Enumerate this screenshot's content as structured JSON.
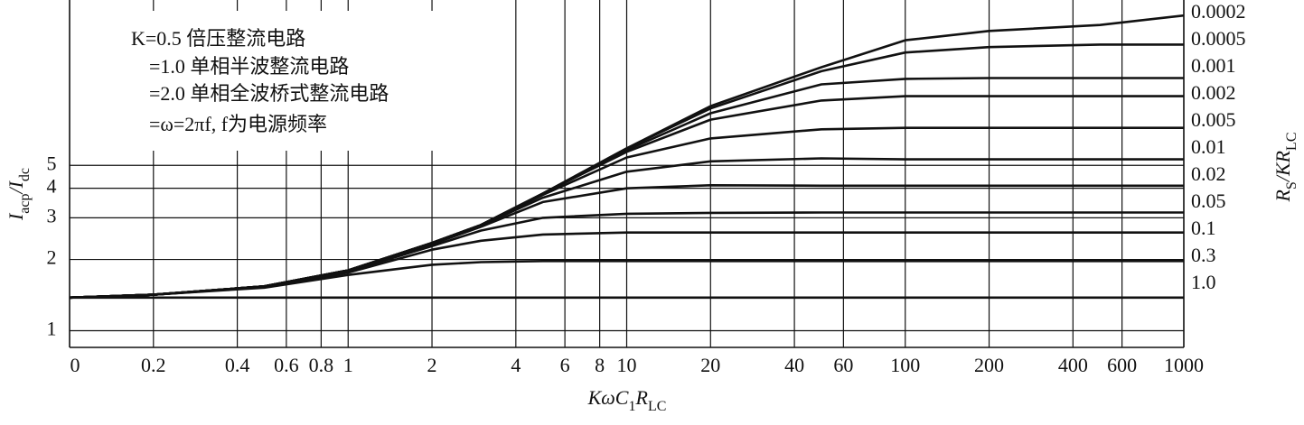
{
  "chart_data": {
    "type": "line",
    "ylabel": [
      "I",
      "acp",
      "/I",
      "dc"
    ],
    "xlabel": [
      "KωC",
      "1",
      "R",
      "LC"
    ],
    "y2label": [
      "R",
      "S",
      "/KR",
      "LC"
    ],
    "annotations": [
      "K=0.5 倍压整流电路",
      "=1.0 单相半波整流电路",
      "=2.0 单相全波桥式整流电路",
      "=ω=2πf, f为电源频率"
    ],
    "xscale": "log",
    "yscale": "log",
    "grid": true,
    "color": "#111111",
    "xlim": [
      0.1,
      1000
    ],
    "ylim": [
      0.85,
      25
    ],
    "xticks": [
      {
        "value": 0.1,
        "label": "0"
      },
      0.2,
      0.4,
      0.6,
      0.8,
      1,
      2,
      4,
      6,
      8,
      10,
      20,
      40,
      60,
      100,
      200,
      400,
      600,
      1000
    ],
    "yticks": [
      1,
      2,
      3,
      4,
      5
    ],
    "x": [
      0.1,
      0.2,
      0.5,
      1,
      2,
      3,
      5,
      10,
      20,
      50,
      100,
      200,
      500,
      1000
    ],
    "series": [
      {
        "name": "0.0002",
        "values": [
          1.38,
          1.42,
          1.54,
          1.8,
          2.35,
          2.8,
          3.8,
          5.9,
          8.9,
          13.0,
          16.9,
          18.5,
          19.6,
          21.5
        ]
      },
      {
        "name": "0.0005",
        "values": [
          1.38,
          1.42,
          1.54,
          1.8,
          2.35,
          2.8,
          3.8,
          5.9,
          8.7,
          12.5,
          15.0,
          15.8,
          16.2,
          16.2
        ]
      },
      {
        "name": "0.001",
        "values": [
          1.38,
          1.42,
          1.54,
          1.8,
          2.35,
          2.8,
          3.8,
          5.8,
          8.3,
          11.0,
          11.6,
          11.7,
          11.7,
          11.7
        ]
      },
      {
        "name": "0.002",
        "values": [
          1.38,
          1.42,
          1.54,
          1.8,
          2.35,
          2.8,
          3.8,
          5.7,
          7.8,
          9.4,
          9.8,
          9.8,
          9.8,
          9.8
        ]
      },
      {
        "name": "0.005",
        "values": [
          1.38,
          1.42,
          1.54,
          1.8,
          2.35,
          2.8,
          3.75,
          5.4,
          6.5,
          7.1,
          7.2,
          7.2,
          7.2,
          7.2
        ]
      },
      {
        "name": "0.01",
        "values": [
          1.38,
          1.42,
          1.54,
          1.8,
          2.34,
          2.78,
          3.65,
          4.7,
          5.2,
          5.35,
          5.3,
          5.3,
          5.3,
          5.3
        ]
      },
      {
        "name": "0.02",
        "values": [
          1.38,
          1.42,
          1.54,
          1.79,
          2.32,
          2.75,
          3.5,
          4.0,
          4.12,
          4.1,
          4.1,
          4.1,
          4.1,
          4.1
        ]
      },
      {
        "name": "0.05",
        "values": [
          1.38,
          1.42,
          1.53,
          1.78,
          2.28,
          2.65,
          3.0,
          3.12,
          3.15,
          3.16,
          3.16,
          3.16,
          3.16,
          3.16
        ]
      },
      {
        "name": "0.1",
        "values": [
          1.38,
          1.42,
          1.53,
          1.76,
          2.2,
          2.4,
          2.55,
          2.6,
          2.6,
          2.6,
          2.6,
          2.6,
          2.6,
          2.6
        ]
      },
      {
        "name": "0.3",
        "values": [
          1.38,
          1.42,
          1.52,
          1.72,
          1.9,
          1.95,
          1.97,
          1.97,
          1.97,
          1.97,
          1.97,
          1.97,
          1.97,
          1.97
        ]
      },
      {
        "name": "1.0",
        "values": [
          1.38,
          1.38,
          1.38,
          1.38,
          1.38,
          1.38,
          1.38,
          1.38,
          1.38,
          1.38,
          1.38,
          1.38,
          1.38,
          1.38
        ]
      }
    ]
  }
}
